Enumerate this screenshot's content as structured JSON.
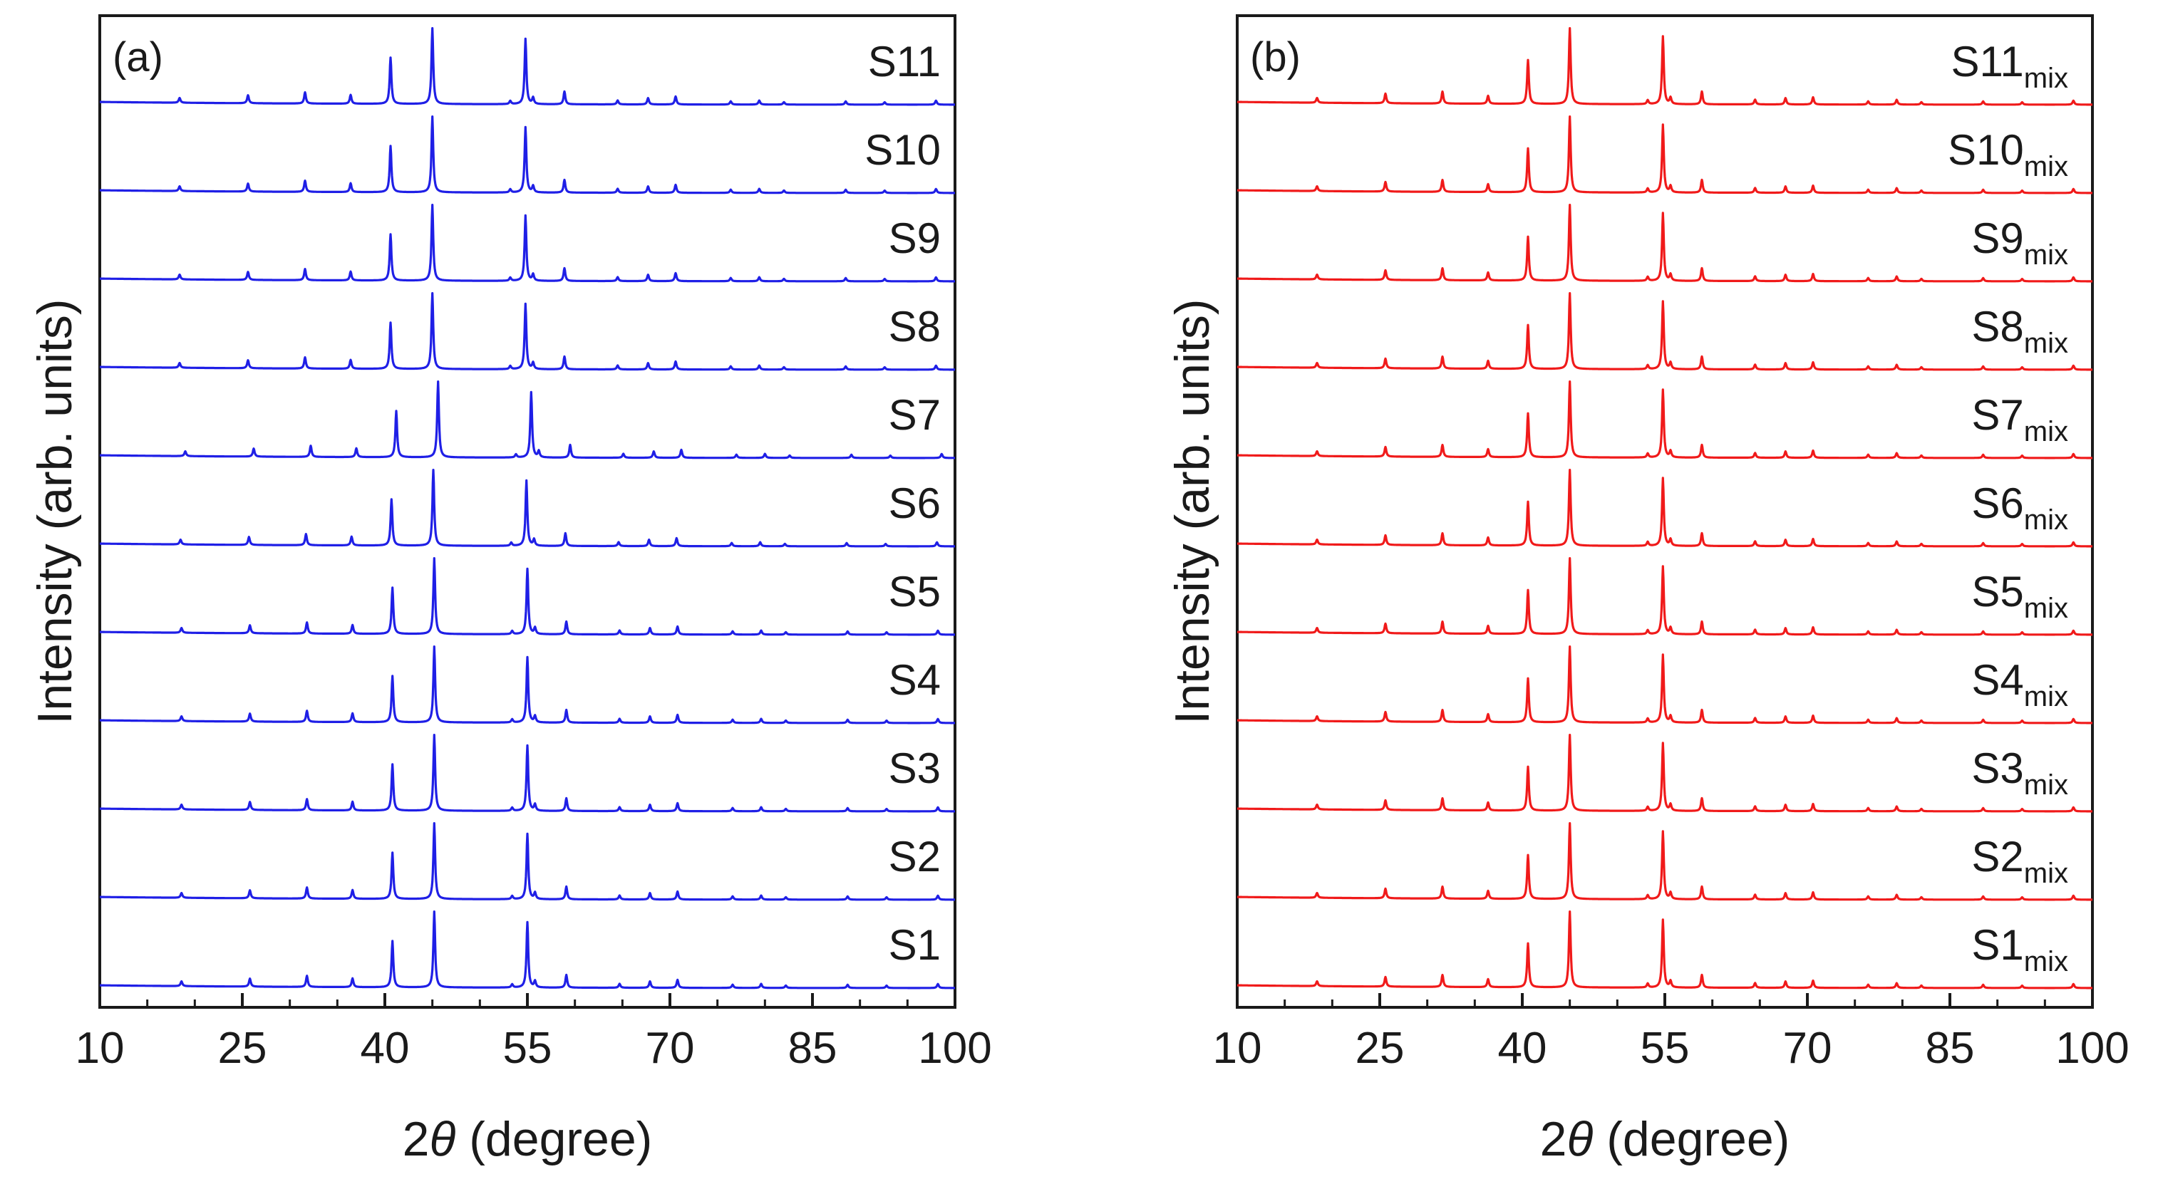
{
  "chart_data": [
    {
      "type": "line",
      "panel_label": "(a)",
      "line_color": "#1f1fe6",
      "xlabel": "2θ (degree)",
      "ylabel": "Intensity (arb. units)",
      "xlim": [
        10,
        100
      ],
      "x_ticks": [
        "10",
        "25",
        "40",
        "55",
        "70",
        "85",
        "100"
      ],
      "x_tick_values": [
        10,
        25,
        40,
        55,
        70,
        85,
        100
      ],
      "grid": false,
      "series": [
        {
          "name": "S11",
          "sub": "",
          "shift": 0.0
        },
        {
          "name": "S10",
          "sub": "",
          "shift": 0.0
        },
        {
          "name": "S9",
          "sub": "",
          "shift": 0.0
        },
        {
          "name": "S8",
          "sub": "",
          "shift": 0.0
        },
        {
          "name": "S7",
          "sub": "",
          "shift": 0.6
        },
        {
          "name": "S6",
          "sub": "",
          "shift": 0.1
        },
        {
          "name": "S5",
          "sub": "",
          "shift": 0.2
        },
        {
          "name": "S4",
          "sub": "",
          "shift": 0.2
        },
        {
          "name": "S3",
          "sub": "",
          "shift": 0.2
        },
        {
          "name": "S2",
          "sub": "",
          "shift": 0.2
        },
        {
          "name": "S1",
          "sub": "",
          "shift": 0.2
        }
      ],
      "peaks": [
        {
          "two_theta": 18.4,
          "rel_intensity": 0.06
        },
        {
          "two_theta": 25.6,
          "rel_intensity": 0.1
        },
        {
          "two_theta": 31.6,
          "rel_intensity": 0.14
        },
        {
          "two_theta": 36.4,
          "rel_intensity": 0.11
        },
        {
          "two_theta": 40.6,
          "rel_intensity": 0.58
        },
        {
          "two_theta": 45.0,
          "rel_intensity": 0.95
        },
        {
          "two_theta": 53.2,
          "rel_intensity": 0.04
        },
        {
          "two_theta": 54.8,
          "rel_intensity": 0.82
        },
        {
          "two_theta": 55.6,
          "rel_intensity": 0.08
        },
        {
          "two_theta": 58.9,
          "rel_intensity": 0.16
        },
        {
          "two_theta": 64.5,
          "rel_intensity": 0.05
        },
        {
          "two_theta": 67.7,
          "rel_intensity": 0.08
        },
        {
          "two_theta": 70.6,
          "rel_intensity": 0.1
        },
        {
          "two_theta": 76.4,
          "rel_intensity": 0.04
        },
        {
          "two_theta": 79.4,
          "rel_intensity": 0.05
        },
        {
          "two_theta": 82.0,
          "rel_intensity": 0.03
        },
        {
          "two_theta": 88.5,
          "rel_intensity": 0.04
        },
        {
          "two_theta": 92.6,
          "rel_intensity": 0.03
        },
        {
          "two_theta": 98.0,
          "rel_intensity": 0.05
        }
      ]
    },
    {
      "type": "line",
      "panel_label": "(b)",
      "line_color": "#f01a1a",
      "xlabel": "2θ (degree)",
      "ylabel": "Intensity (arb. units)",
      "xlim": [
        10,
        100
      ],
      "x_ticks": [
        "10",
        "25",
        "40",
        "55",
        "70",
        "85",
        "100"
      ],
      "x_tick_values": [
        10,
        25,
        40,
        55,
        70,
        85,
        100
      ],
      "grid": false,
      "series": [
        {
          "name": "S11",
          "sub": "mix",
          "shift": 0.0
        },
        {
          "name": "S10",
          "sub": "mix",
          "shift": 0.0
        },
        {
          "name": "S9",
          "sub": "mix",
          "shift": 0.0
        },
        {
          "name": "S8",
          "sub": "mix",
          "shift": 0.0
        },
        {
          "name": "S7",
          "sub": "mix",
          "shift": 0.0
        },
        {
          "name": "S6",
          "sub": "mix",
          "shift": 0.0
        },
        {
          "name": "S5",
          "sub": "mix",
          "shift": 0.0
        },
        {
          "name": "S4",
          "sub": "mix",
          "shift": 0.0
        },
        {
          "name": "S3",
          "sub": "mix",
          "shift": 0.0
        },
        {
          "name": "S2",
          "sub": "mix",
          "shift": 0.0
        },
        {
          "name": "S1",
          "sub": "mix",
          "shift": 0.0
        }
      ],
      "peaks": [
        {
          "two_theta": 18.4,
          "rel_intensity": 0.06
        },
        {
          "two_theta": 25.6,
          "rel_intensity": 0.12
        },
        {
          "two_theta": 31.6,
          "rel_intensity": 0.15
        },
        {
          "two_theta": 36.4,
          "rel_intensity": 0.1
        },
        {
          "two_theta": 40.6,
          "rel_intensity": 0.55
        },
        {
          "two_theta": 45.0,
          "rel_intensity": 0.95
        },
        {
          "two_theta": 53.2,
          "rel_intensity": 0.05
        },
        {
          "two_theta": 54.8,
          "rel_intensity": 0.85
        },
        {
          "two_theta": 55.6,
          "rel_intensity": 0.08
        },
        {
          "two_theta": 58.9,
          "rel_intensity": 0.16
        },
        {
          "two_theta": 64.5,
          "rel_intensity": 0.06
        },
        {
          "two_theta": 67.7,
          "rel_intensity": 0.08
        },
        {
          "two_theta": 70.6,
          "rel_intensity": 0.09
        },
        {
          "two_theta": 76.4,
          "rel_intensity": 0.04
        },
        {
          "two_theta": 79.4,
          "rel_intensity": 0.06
        },
        {
          "two_theta": 82.0,
          "rel_intensity": 0.03
        },
        {
          "two_theta": 88.5,
          "rel_intensity": 0.04
        },
        {
          "two_theta": 92.6,
          "rel_intensity": 0.03
        },
        {
          "two_theta": 98.0,
          "rel_intensity": 0.05
        }
      ]
    }
  ]
}
